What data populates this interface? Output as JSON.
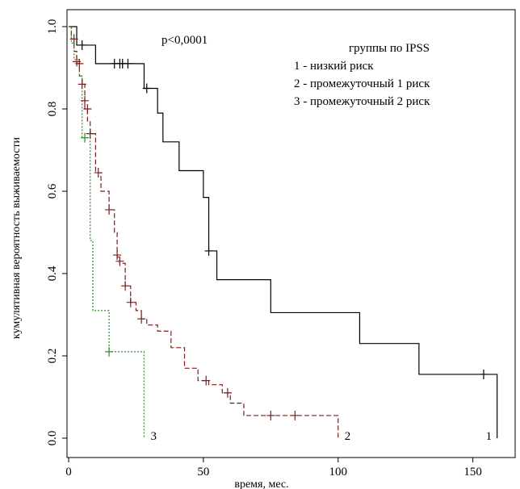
{
  "chart_data": {
    "type": "line",
    "subtype": "kaplan-meier step",
    "xlabel": "время, мес.",
    "ylabel": "кумулятивная вероятность выживаемости",
    "xlim": [
      0,
      160
    ],
    "ylim": [
      0,
      1
    ],
    "xticks": [
      "0",
      "50",
      "100",
      "150"
    ],
    "yticks": [
      "0.0",
      "0.2",
      "0.4",
      "0.6",
      "0.8",
      "1.0"
    ],
    "annotation": "p<0,0001",
    "legend": {
      "title": "группы по IPSS",
      "placement": "top-right",
      "items": [
        "1 - низкий риск",
        "2 - промежуточный 1 риск",
        "3 - промежуточный 2 риск"
      ]
    },
    "series": [
      {
        "label": "1",
        "color": "#000000",
        "dash": "solid",
        "steps": [
          [
            0,
            1.0
          ],
          [
            3,
            0.955
          ],
          [
            10,
            0.91
          ],
          [
            28,
            0.85
          ],
          [
            33,
            0.79
          ],
          [
            35,
            0.72
          ],
          [
            41,
            0.65
          ],
          [
            50,
            0.585
          ],
          [
            52,
            0.455
          ],
          [
            55,
            0.385
          ],
          [
            75,
            0.305
          ],
          [
            108,
            0.23
          ],
          [
            130,
            0.155
          ],
          [
            159,
            0.0
          ]
        ],
        "end": 159,
        "censored": [
          [
            5,
            0.955
          ],
          [
            17,
            0.91
          ],
          [
            19,
            0.91
          ],
          [
            20,
            0.91
          ],
          [
            22,
            0.91
          ],
          [
            29,
            0.85
          ],
          [
            52,
            0.455
          ],
          [
            154,
            0.155
          ]
        ]
      },
      {
        "label": "2",
        "color": "#7a1f1f",
        "dash": "dashed",
        "steps": [
          [
            0,
            1.0
          ],
          [
            1,
            0.97
          ],
          [
            2,
            0.94
          ],
          [
            3,
            0.91
          ],
          [
            4,
            0.88
          ],
          [
            5,
            0.86
          ],
          [
            6,
            0.8
          ],
          [
            7,
            0.77
          ],
          [
            8,
            0.74
          ],
          [
            10,
            0.645
          ],
          [
            12,
            0.6
          ],
          [
            15,
            0.555
          ],
          [
            17,
            0.5
          ],
          [
            18,
            0.44
          ],
          [
            19,
            0.425
          ],
          [
            21,
            0.37
          ],
          [
            23,
            0.33
          ],
          [
            25,
            0.31
          ],
          [
            27,
            0.29
          ],
          [
            29,
            0.275
          ],
          [
            33,
            0.26
          ],
          [
            38,
            0.22
          ],
          [
            43,
            0.17
          ],
          [
            48,
            0.14
          ],
          [
            52,
            0.13
          ],
          [
            57,
            0.11
          ],
          [
            60,
            0.085
          ],
          [
            65,
            0.055
          ],
          [
            100,
            0.0
          ]
        ],
        "end": 100,
        "censored": [
          [
            2,
            0.97
          ],
          [
            3,
            0.915
          ],
          [
            4,
            0.91
          ],
          [
            5,
            0.86
          ],
          [
            6,
            0.82
          ],
          [
            7,
            0.8
          ],
          [
            8,
            0.74
          ],
          [
            11,
            0.645
          ],
          [
            15,
            0.555
          ],
          [
            18,
            0.445
          ],
          [
            19,
            0.43
          ],
          [
            21,
            0.37
          ],
          [
            23,
            0.33
          ],
          [
            27,
            0.29
          ],
          [
            51,
            0.14
          ],
          [
            59,
            0.11
          ],
          [
            75,
            0.055
          ],
          [
            84,
            0.055
          ]
        ]
      },
      {
        "label": "3",
        "color": "#2e8b2e",
        "dash": "dotted",
        "steps": [
          [
            0,
            1.0
          ],
          [
            1,
            0.96
          ],
          [
            2,
            0.92
          ],
          [
            4,
            0.88
          ],
          [
            5,
            0.73
          ],
          [
            8,
            0.48
          ],
          [
            9,
            0.31
          ],
          [
            15,
            0.21
          ],
          [
            28,
            0.0
          ]
        ],
        "end": 28,
        "censored": [
          [
            6,
            0.73
          ],
          [
            15,
            0.21
          ]
        ]
      }
    ]
  }
}
